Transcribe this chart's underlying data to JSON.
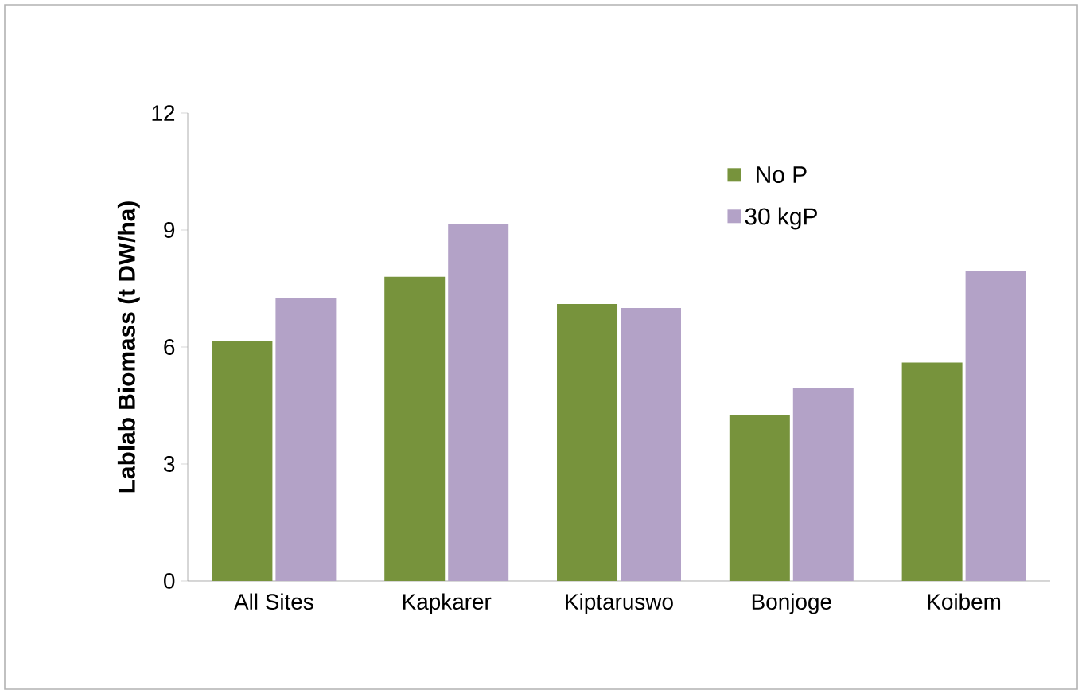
{
  "chart_data": {
    "type": "bar",
    "ylabel": "Lablab Biomass (t DW/ha)",
    "categories": [
      "All Sites",
      "Kapkarer",
      "Kiptaruswo",
      "Bonjoge",
      "Koibem"
    ],
    "series": [
      {
        "name": "No P",
        "color": "#77933c",
        "values": [
          6.15,
          7.8,
          7.1,
          4.25,
          5.6
        ]
      },
      {
        "name": "30 kgP",
        "color": "#b3a2c7",
        "values": [
          7.25,
          9.15,
          7.0,
          4.95,
          7.95
        ]
      }
    ],
    "ylim": [
      0,
      12
    ],
    "yticks": [
      0,
      3,
      6,
      9,
      12
    ],
    "grid": false,
    "legend": "top right"
  }
}
